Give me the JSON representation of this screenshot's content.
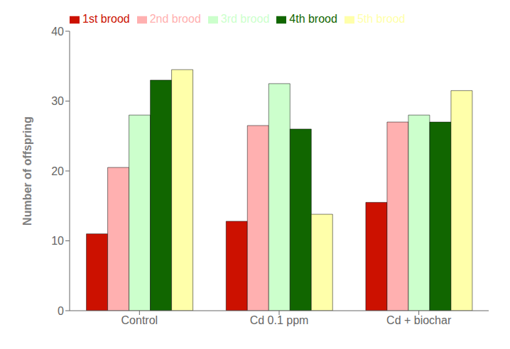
{
  "chart_data": {
    "type": "bar",
    "categories": [
      "Control",
      "Cd 0.1 ppm",
      "Cd + biochar"
    ],
    "series": [
      {
        "name": "1st brood",
        "color": "#CC1100",
        "values": [
          11.0,
          12.8,
          15.5
        ]
      },
      {
        "name": "2nd brood",
        "color": "#FFB0B0",
        "values": [
          20.5,
          26.5,
          27.0
        ]
      },
      {
        "name": "3rd brood",
        "color": "#CCFFCC",
        "values": [
          28.0,
          32.5,
          28.0
        ]
      },
      {
        "name": "4th brood",
        "color": "#116600",
        "values": [
          33.0,
          26.0,
          27.0
        ]
      },
      {
        "name": "5th brood",
        "color": "#FFFFAA",
        "values": [
          34.5,
          13.8,
          31.5
        ]
      }
    ],
    "ylabel": "Number of offspring",
    "ylim": [
      0,
      40
    ],
    "yticks": [
      0,
      10,
      20,
      30,
      40
    ],
    "grid": false,
    "legend": "upper left"
  }
}
